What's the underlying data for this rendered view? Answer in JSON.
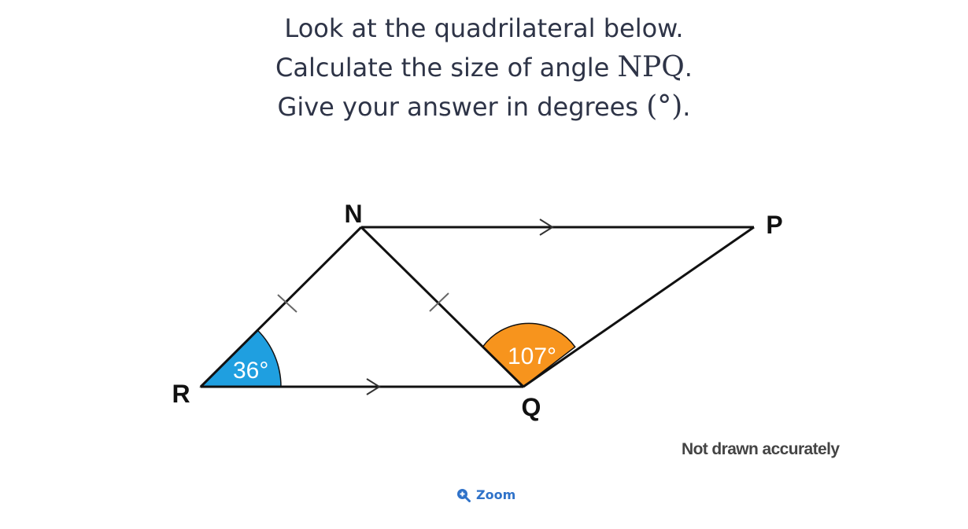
{
  "question": {
    "line1": "Look at the quadrilateral below.",
    "line2_text": "Calculate the size of angle",
    "line2_math": "NPQ",
    "line2_end": ".",
    "line3_text": "Give your answer in degrees",
    "line3_math": "(°)",
    "line3_end": "."
  },
  "diagram": {
    "vertices": {
      "N": "N",
      "P": "P",
      "R": "R",
      "Q": "Q"
    },
    "angle_R": "36°",
    "angle_Q": "107°",
    "colors": {
      "angle_R_fill": "#1f9fe0",
      "angle_Q_fill": "#f7941d",
      "line": "#111111",
      "marks": "#666666"
    }
  },
  "note": "Not drawn accurately",
  "zoom": {
    "label": "Zoom",
    "icon": "zoom-in-icon"
  }
}
